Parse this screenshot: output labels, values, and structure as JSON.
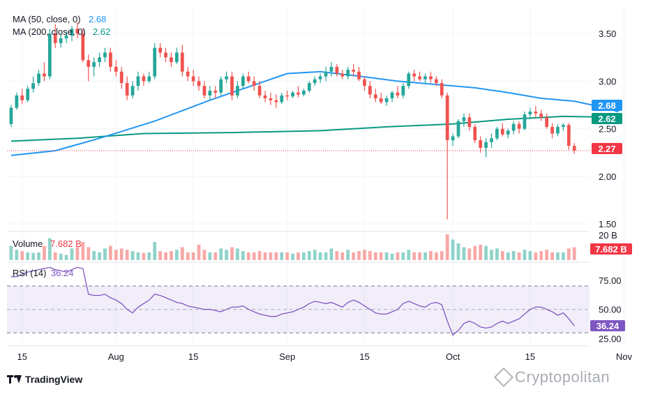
{
  "indicators": {
    "ma50": {
      "label": "MA (50, close, 0)",
      "value": "2.68",
      "color": "#2196f3"
    },
    "ma200": {
      "label": "MA (200, close, 0)",
      "value": "2.62",
      "color": "#089981"
    }
  },
  "colors": {
    "up": "#26a69a",
    "down": "#ef5350",
    "vol_up": "#8fd3c9",
    "vol_down": "#f7a9a7",
    "rsi": "#7e57c2",
    "price_line": "#f23645"
  },
  "price_badges": {
    "ma50": "2.68",
    "ma200": "2.62",
    "last": "2.27"
  },
  "volume": {
    "label": "Volume",
    "value": "7.682 B",
    "axis_tick": "20 B",
    "badge": "7.682 B"
  },
  "rsi": {
    "label": "RSI (14)",
    "value": "36.24",
    "badge": "36.24",
    "ticks": [
      "75.00",
      "50.00",
      "25.00"
    ],
    "bands": [
      30,
      70
    ],
    "mid": 50
  },
  "branding": {
    "tradingview": "TradingView",
    "watermark": "Cryptopolitan"
  },
  "chart_data": {
    "type": "candlestick",
    "price_axis_ticks": [
      "3.50",
      "3.00",
      "2.50",
      "2.00",
      "1.50"
    ],
    "ylim": [
      1.45,
      3.75
    ],
    "x_ticks": [
      {
        "index": 2,
        "label": "15"
      },
      {
        "index": 19,
        "label": "Aug"
      },
      {
        "index": 33,
        "label": "15"
      },
      {
        "index": 50,
        "label": "Sep"
      },
      {
        "index": 64,
        "label": "15"
      },
      {
        "index": 80,
        "label": "Oct"
      },
      {
        "index": 94,
        "label": "15"
      },
      {
        "index": 111,
        "label": "Nov"
      }
    ],
    "candles": [
      [
        2.55,
        2.75,
        2.52,
        2.72
      ],
      [
        2.72,
        2.88,
        2.7,
        2.85
      ],
      [
        2.85,
        2.92,
        2.76,
        2.8
      ],
      [
        2.8,
        2.95,
        2.78,
        2.92
      ],
      [
        2.92,
        3.05,
        2.88,
        2.98
      ],
      [
        2.98,
        3.12,
        2.95,
        3.08
      ],
      [
        3.08,
        3.2,
        3.0,
        3.05
      ],
      [
        3.05,
        3.55,
        3.02,
        3.5
      ],
      [
        3.5,
        3.6,
        3.35,
        3.4
      ],
      [
        3.4,
        3.5,
        3.35,
        3.45
      ],
      [
        3.45,
        3.52,
        3.4,
        3.48
      ],
      [
        3.48,
        3.58,
        3.42,
        3.55
      ],
      [
        3.55,
        3.62,
        3.45,
        3.5
      ],
      [
        3.5,
        3.55,
        3.2,
        3.22
      ],
      [
        3.22,
        3.28,
        3.0,
        3.15
      ],
      [
        3.15,
        3.25,
        3.05,
        3.2
      ],
      [
        3.2,
        3.3,
        3.15,
        3.25
      ],
      [
        3.25,
        3.35,
        3.2,
        3.3
      ],
      [
        3.3,
        3.35,
        3.1,
        3.15
      ],
      [
        3.15,
        3.22,
        3.05,
        3.1
      ],
      [
        3.1,
        3.15,
        2.92,
        2.98
      ],
      [
        2.98,
        3.05,
        2.8,
        2.85
      ],
      [
        2.85,
        3.0,
        2.82,
        2.95
      ],
      [
        2.95,
        3.1,
        2.9,
        3.05
      ],
      [
        3.05,
        3.08,
        2.95,
        3.0
      ],
      [
        3.0,
        3.1,
        2.98,
        3.05
      ],
      [
        3.05,
        3.4,
        3.02,
        3.35
      ],
      [
        3.35,
        3.4,
        3.25,
        3.3
      ],
      [
        3.3,
        3.35,
        3.2,
        3.25
      ],
      [
        3.25,
        3.3,
        3.15,
        3.2
      ],
      [
        3.2,
        3.35,
        3.18,
        3.3
      ],
      [
        3.3,
        3.38,
        3.05,
        3.1
      ],
      [
        3.1,
        3.15,
        3.0,
        3.05
      ],
      [
        3.05,
        3.12,
        2.95,
        3.0
      ],
      [
        3.0,
        3.05,
        2.9,
        2.95
      ],
      [
        2.95,
        3.0,
        2.82,
        2.85
      ],
      [
        2.85,
        2.95,
        2.8,
        2.9
      ],
      [
        2.9,
        2.95,
        2.82,
        2.88
      ],
      [
        2.88,
        3.05,
        2.85,
        3.02
      ],
      [
        3.02,
        3.1,
        2.98,
        3.05
      ],
      [
        3.05,
        3.1,
        2.8,
        2.85
      ],
      [
        2.85,
        3.0,
        2.82,
        2.95
      ],
      [
        2.95,
        3.08,
        2.92,
        3.05
      ],
      [
        3.05,
        3.1,
        2.98,
        3.0
      ],
      [
        3.0,
        3.05,
        2.9,
        2.95
      ],
      [
        2.95,
        3.0,
        2.82,
        2.85
      ],
      [
        2.85,
        2.9,
        2.78,
        2.82
      ],
      [
        2.82,
        2.88,
        2.75,
        2.8
      ],
      [
        2.8,
        2.86,
        2.72,
        2.78
      ],
      [
        2.78,
        2.88,
        2.76,
        2.85
      ],
      [
        2.85,
        2.9,
        2.8,
        2.84
      ],
      [
        2.84,
        2.9,
        2.82,
        2.88
      ],
      [
        2.88,
        2.95,
        2.83,
        2.86
      ],
      [
        2.86,
        2.92,
        2.84,
        2.9
      ],
      [
        2.9,
        3.0,
        2.88,
        2.98
      ],
      [
        2.98,
        3.05,
        2.95,
        3.02
      ],
      [
        3.02,
        3.08,
        2.98,
        3.05
      ],
      [
        3.05,
        3.15,
        3.0,
        3.1
      ],
      [
        3.1,
        3.2,
        3.05,
        3.15
      ],
      [
        3.15,
        3.18,
        3.05,
        3.08
      ],
      [
        3.08,
        3.12,
        3.02,
        3.05
      ],
      [
        3.05,
        3.15,
        3.02,
        3.12
      ],
      [
        3.12,
        3.18,
        3.05,
        3.1
      ],
      [
        3.1,
        3.15,
        3.0,
        3.02
      ],
      [
        3.02,
        3.05,
        2.9,
        2.95
      ],
      [
        2.95,
        3.0,
        2.82,
        2.86
      ],
      [
        2.86,
        2.92,
        2.78,
        2.82
      ],
      [
        2.82,
        2.88,
        2.76,
        2.78
      ],
      [
        2.78,
        2.85,
        2.74,
        2.82
      ],
      [
        2.82,
        2.9,
        2.78,
        2.88
      ],
      [
        2.88,
        2.95,
        2.82,
        2.85
      ],
      [
        2.85,
        2.98,
        2.82,
        2.95
      ],
      [
        2.95,
        3.1,
        2.92,
        3.08
      ],
      [
        3.08,
        3.12,
        3.0,
        3.05
      ],
      [
        3.05,
        3.1,
        3.0,
        3.02
      ],
      [
        3.02,
        3.08,
        2.98,
        3.05
      ],
      [
        3.05,
        3.1,
        2.98,
        3.02
      ],
      [
        3.02,
        3.05,
        2.95,
        2.98
      ],
      [
        2.98,
        3.02,
        2.82,
        2.85
      ],
      [
        2.85,
        2.88,
        1.55,
        2.38
      ],
      [
        2.38,
        2.45,
        2.32,
        2.42
      ],
      [
        2.42,
        2.6,
        2.4,
        2.58
      ],
      [
        2.58,
        2.66,
        2.52,
        2.62
      ],
      [
        2.62,
        2.66,
        2.48,
        2.52
      ],
      [
        2.52,
        2.55,
        2.35,
        2.38
      ],
      [
        2.38,
        2.42,
        2.25,
        2.3
      ],
      [
        2.3,
        2.4,
        2.2,
        2.36
      ],
      [
        2.36,
        2.45,
        2.3,
        2.4
      ],
      [
        2.4,
        2.52,
        2.38,
        2.5
      ],
      [
        2.5,
        2.56,
        2.42,
        2.44
      ],
      [
        2.44,
        2.5,
        2.4,
        2.48
      ],
      [
        2.48,
        2.58,
        2.44,
        2.55
      ],
      [
        2.55,
        2.58,
        2.45,
        2.5
      ],
      [
        2.5,
        2.68,
        2.48,
        2.65
      ],
      [
        2.65,
        2.72,
        2.6,
        2.68
      ],
      [
        2.68,
        2.74,
        2.62,
        2.66
      ],
      [
        2.66,
        2.7,
        2.58,
        2.62
      ],
      [
        2.62,
        2.66,
        2.5,
        2.52
      ],
      [
        2.52,
        2.56,
        2.4,
        2.45
      ],
      [
        2.45,
        2.55,
        2.42,
        2.52
      ],
      [
        2.52,
        2.56,
        2.48,
        2.54
      ],
      [
        2.54,
        2.56,
        2.28,
        2.32
      ],
      [
        2.32,
        2.35,
        2.24,
        2.27
      ]
    ],
    "ma50_path": [
      [
        0,
        2.22
      ],
      [
        8,
        2.27
      ],
      [
        16,
        2.4
      ],
      [
        26,
        2.58
      ],
      [
        36,
        2.8
      ],
      [
        44,
        2.96
      ],
      [
        50,
        3.08
      ],
      [
        56,
        3.1
      ],
      [
        62,
        3.06
      ],
      [
        70,
        3.0
      ],
      [
        78,
        2.96
      ],
      [
        84,
        2.93
      ],
      [
        90,
        2.88
      ],
      [
        96,
        2.82
      ],
      [
        102,
        2.79
      ],
      [
        106,
        2.74
      ],
      [
        110,
        2.68
      ]
    ],
    "ma200_path": [
      [
        0,
        2.37
      ],
      [
        12,
        2.4
      ],
      [
        24,
        2.45
      ],
      [
        40,
        2.46
      ],
      [
        56,
        2.48
      ],
      [
        68,
        2.52
      ],
      [
        80,
        2.55
      ],
      [
        90,
        2.6
      ],
      [
        100,
        2.63
      ],
      [
        110,
        2.62
      ]
    ],
    "last_price": 2.27,
    "volume": [
      0.55,
      0.4,
      0.35,
      0.3,
      0.28,
      0.3,
      0.55,
      0.85,
      0.3,
      0.25,
      0.2,
      0.45,
      0.5,
      0.7,
      0.5,
      0.35,
      0.3,
      0.45,
      0.55,
      0.4,
      0.45,
      0.4,
      0.35,
      0.3,
      0.28,
      0.3,
      0.7,
      0.35,
      0.3,
      0.35,
      0.4,
      0.5,
      0.3,
      0.3,
      0.6,
      0.4,
      0.3,
      0.3,
      0.45,
      0.4,
      0.5,
      0.45,
      0.35,
      0.3,
      0.3,
      0.35,
      0.3,
      0.3,
      0.3,
      0.3,
      0.3,
      0.25,
      0.3,
      0.3,
      0.35,
      0.4,
      0.3,
      0.3,
      0.45,
      0.35,
      0.3,
      0.4,
      0.3,
      0.35,
      0.4,
      0.35,
      0.3,
      0.3,
      0.3,
      0.25,
      0.3,
      0.3,
      0.4,
      0.3,
      0.3,
      0.3,
      0.35,
      0.3,
      0.35,
      1.0,
      0.8,
      0.65,
      0.5,
      0.45,
      0.55,
      0.6,
      0.55,
      0.4,
      0.45,
      0.35,
      0.3,
      0.35,
      0.3,
      0.4,
      0.35,
      0.3,
      0.35,
      0.4,
      0.3,
      0.3,
      0.3,
      0.45,
      0.5
    ],
    "rsi": [
      78,
      78,
      80,
      82,
      83,
      84,
      85,
      86,
      84,
      83,
      82,
      84,
      86,
      85,
      63,
      62,
      62,
      63,
      60,
      58,
      55,
      50,
      47,
      52,
      55,
      58,
      63,
      62,
      60,
      58,
      56,
      55,
      53,
      52,
      51,
      50,
      50,
      49,
      48,
      50,
      52,
      52,
      53,
      50,
      48,
      46,
      45,
      44,
      44,
      46,
      47,
      48,
      50,
      52,
      55,
      57,
      56,
      55,
      56,
      54,
      52,
      56,
      58,
      56,
      53,
      50,
      47,
      46,
      46,
      48,
      50,
      55,
      57,
      55,
      53,
      52,
      55,
      56,
      54,
      40,
      28,
      32,
      38,
      40,
      38,
      35,
      34,
      35,
      38,
      40,
      38,
      40,
      42,
      46,
      50,
      52,
      52,
      50,
      48,
      45,
      47,
      42,
      36
    ],
    "rsi_ylim": [
      20,
      88
    ]
  }
}
